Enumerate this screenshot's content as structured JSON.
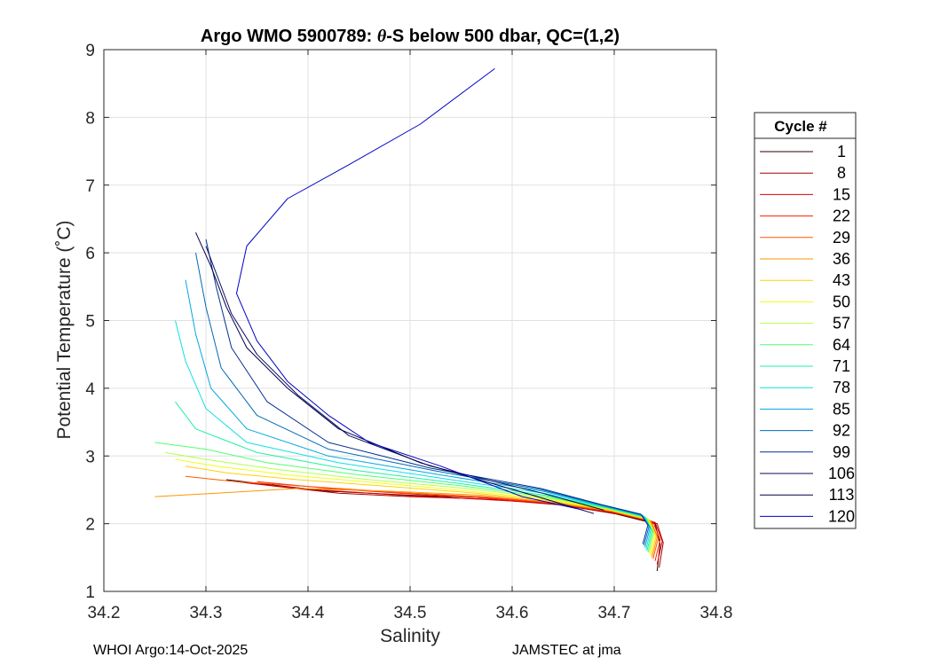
{
  "chart_data": {
    "type": "line",
    "title_prefix": "Argo WMO 5900789: ",
    "title_theta": "θ",
    "title_suffix": "-S below 500 dbar,  QC=(1,2)",
    "xlabel": "Salinity",
    "ylabel": "Potential Temperature (˚C)",
    "xlim": [
      34.2,
      34.8
    ],
    "ylim": [
      1,
      9
    ],
    "xticks": [
      "34.2",
      "34.3",
      "34.4",
      "34.5",
      "34.6",
      "34.7",
      "34.8"
    ],
    "yticks": [
      "1",
      "2",
      "3",
      "4",
      "5",
      "6",
      "7",
      "8",
      "9"
    ],
    "grid": true,
    "legend": {
      "title": "Cycle #",
      "placement": "right",
      "entries": [
        {
          "label": "1",
          "color": "#2b0000"
        },
        {
          "label": "8",
          "color": "#a80000"
        },
        {
          "label": "15",
          "color": "#e00000"
        },
        {
          "label": "22",
          "color": "#ff1e00"
        },
        {
          "label": "29",
          "color": "#ff5a00"
        },
        {
          "label": "36",
          "color": "#ff9600"
        },
        {
          "label": "43",
          "color": "#ffd200"
        },
        {
          "label": "50",
          "color": "#f0ff10"
        },
        {
          "label": "57",
          "color": "#b4ff48"
        },
        {
          "label": "64",
          "color": "#50ff70"
        },
        {
          "label": "71",
          "color": "#20f0a0"
        },
        {
          "label": "78",
          "color": "#10e0e0"
        },
        {
          "label": "85",
          "color": "#00a8e0"
        },
        {
          "label": "92",
          "color": "#006ab4"
        },
        {
          "label": "99",
          "color": "#003090"
        },
        {
          "label": "106",
          "color": "#0a0a60"
        },
        {
          "label": "113",
          "color": "#00004a"
        },
        {
          "label": "120",
          "color": "#0000c8"
        }
      ]
    },
    "series": [
      {
        "name": "1",
        "color": "#2b0000",
        "s": [
          34.742,
          34.745,
          34.74,
          34.7,
          34.64,
          34.58,
          34.5,
          34.42,
          34.36,
          34.32
        ],
        "t": [
          1.3,
          1.7,
          2.0,
          2.15,
          2.3,
          2.38,
          2.42,
          2.48,
          2.58,
          2.65
        ]
      },
      {
        "name": "8",
        "color": "#a80000",
        "s": [
          34.744,
          34.748,
          34.742,
          34.705,
          34.645,
          34.58,
          34.5,
          34.43,
          34.37,
          34.33
        ],
        "t": [
          1.35,
          1.72,
          2.0,
          2.14,
          2.28,
          2.36,
          2.4,
          2.45,
          2.55,
          2.62
        ]
      },
      {
        "name": "15",
        "color": "#e00000",
        "s": [
          34.742,
          34.747,
          34.74,
          34.7,
          34.64,
          34.57,
          34.49,
          34.41,
          34.34
        ],
        "t": [
          1.4,
          1.74,
          2.02,
          2.16,
          2.3,
          2.36,
          2.42,
          2.5,
          2.6
        ]
      },
      {
        "name": "22",
        "color": "#ff1e00",
        "s": [
          34.74,
          34.745,
          34.738,
          34.7,
          34.64,
          34.575,
          34.5,
          34.42,
          34.35
        ],
        "t": [
          1.45,
          1.76,
          2.03,
          2.17,
          2.3,
          2.38,
          2.44,
          2.52,
          2.62
        ]
      },
      {
        "name": "29",
        "color": "#ff5a00",
        "s": [
          34.738,
          34.743,
          34.736,
          34.698,
          34.638,
          34.57,
          34.49,
          34.41,
          34.33,
          34.28
        ],
        "t": [
          1.48,
          1.78,
          2.04,
          2.18,
          2.31,
          2.4,
          2.46,
          2.54,
          2.62,
          2.7
        ]
      },
      {
        "name": "36",
        "color": "#ff9600",
        "s": [
          34.737,
          34.742,
          34.735,
          34.697,
          34.637,
          34.57,
          34.48,
          34.39,
          34.31,
          34.25
        ],
        "t": [
          1.5,
          1.8,
          2.05,
          2.19,
          2.32,
          2.42,
          2.48,
          2.52,
          2.45,
          2.4
        ]
      },
      {
        "name": "43",
        "color": "#ffd200",
        "s": [
          34.736,
          34.741,
          34.734,
          34.696,
          34.636,
          34.565,
          34.48,
          34.39,
          34.32,
          34.28
        ],
        "t": [
          1.52,
          1.82,
          2.06,
          2.2,
          2.34,
          2.45,
          2.55,
          2.65,
          2.75,
          2.85
        ]
      },
      {
        "name": "50",
        "color": "#f0ff10",
        "s": [
          34.735,
          34.74,
          34.733,
          34.695,
          34.635,
          34.56,
          34.47,
          34.38,
          34.31,
          34.27
        ],
        "t": [
          1.55,
          1.84,
          2.07,
          2.21,
          2.36,
          2.48,
          2.6,
          2.72,
          2.85,
          2.95
        ]
      },
      {
        "name": "57",
        "color": "#b4ff48",
        "s": [
          34.734,
          34.739,
          34.732,
          34.694,
          34.634,
          34.555,
          34.46,
          34.37,
          34.3,
          34.26
        ],
        "t": [
          1.57,
          1.86,
          2.08,
          2.22,
          2.38,
          2.52,
          2.65,
          2.8,
          2.95,
          3.05
        ]
      },
      {
        "name": "64",
        "color": "#50ff70",
        "s": [
          34.733,
          34.738,
          34.731,
          34.693,
          34.633,
          34.55,
          34.45,
          34.36,
          34.3,
          34.25
        ],
        "t": [
          1.58,
          1.88,
          2.09,
          2.23,
          2.4,
          2.56,
          2.72,
          2.9,
          3.1,
          3.2
        ]
      },
      {
        "name": "71",
        "color": "#20f0a0",
        "s": [
          34.732,
          34.737,
          34.73,
          34.692,
          34.632,
          34.545,
          34.44,
          34.35,
          34.29,
          34.27
        ],
        "t": [
          1.6,
          1.9,
          2.1,
          2.24,
          2.42,
          2.6,
          2.8,
          3.05,
          3.4,
          3.8
        ]
      },
      {
        "name": "78",
        "color": "#10e0e0",
        "s": [
          34.731,
          34.736,
          34.729,
          34.691,
          34.631,
          34.54,
          34.43,
          34.34,
          34.3,
          34.28,
          34.27
        ],
        "t": [
          1.62,
          1.92,
          2.11,
          2.25,
          2.45,
          2.65,
          2.9,
          3.2,
          3.7,
          4.4,
          5.0
        ]
      },
      {
        "name": "85",
        "color": "#00a8e0",
        "s": [
          34.73,
          34.735,
          34.728,
          34.69,
          34.63,
          34.53,
          34.42,
          34.34,
          34.305,
          34.29,
          34.28
        ],
        "t": [
          1.65,
          1.94,
          2.12,
          2.26,
          2.48,
          2.72,
          3.0,
          3.4,
          4.0,
          4.8,
          5.6
        ]
      },
      {
        "name": "92",
        "color": "#006ab4",
        "s": [
          34.729,
          34.734,
          34.727,
          34.689,
          34.629,
          34.525,
          34.42,
          34.35,
          34.315,
          34.3,
          34.29
        ],
        "t": [
          1.68,
          1.96,
          2.13,
          2.27,
          2.5,
          2.78,
          3.1,
          3.6,
          4.3,
          5.2,
          6.0
        ]
      },
      {
        "name": "99",
        "color": "#003090",
        "s": [
          34.728,
          34.733,
          34.726,
          34.688,
          34.628,
          34.52,
          34.42,
          34.36,
          34.325,
          34.31,
          34.3
        ],
        "t": [
          1.7,
          1.98,
          2.14,
          2.28,
          2.52,
          2.82,
          3.2,
          3.8,
          4.6,
          5.5,
          6.2
        ]
      },
      {
        "name": "106",
        "color": "#0a0a60",
        "s": [
          34.69,
          34.63,
          34.52,
          34.44,
          34.39,
          34.35,
          34.325,
          34.31,
          34.3
        ],
        "t": [
          2.2,
          2.45,
          2.85,
          3.3,
          3.9,
          4.5,
          5.1,
          5.7,
          6.1
        ]
      },
      {
        "name": "113",
        "color": "#00004a",
        "s": [
          34.68,
          34.62,
          34.51,
          34.43,
          34.38,
          34.34,
          34.32,
          34.305,
          34.29
        ],
        "t": [
          2.15,
          2.42,
          2.9,
          3.4,
          4.0,
          4.6,
          5.2,
          5.8,
          6.3
        ]
      },
      {
        "name": "120",
        "color": "#0000c8",
        "s": [
          34.67,
          34.61,
          34.53,
          34.46,
          34.42,
          34.38,
          34.35,
          34.33,
          34.34,
          34.38,
          34.44,
          34.51,
          34.583
        ],
        "t": [
          2.2,
          2.4,
          2.85,
          3.2,
          3.6,
          4.1,
          4.7,
          5.4,
          6.1,
          6.8,
          7.3,
          7.9,
          8.72
        ]
      }
    ]
  },
  "footer": {
    "left": "WHOI Argo:14-Oct-2025",
    "right": "JAMSTEC at jma"
  }
}
